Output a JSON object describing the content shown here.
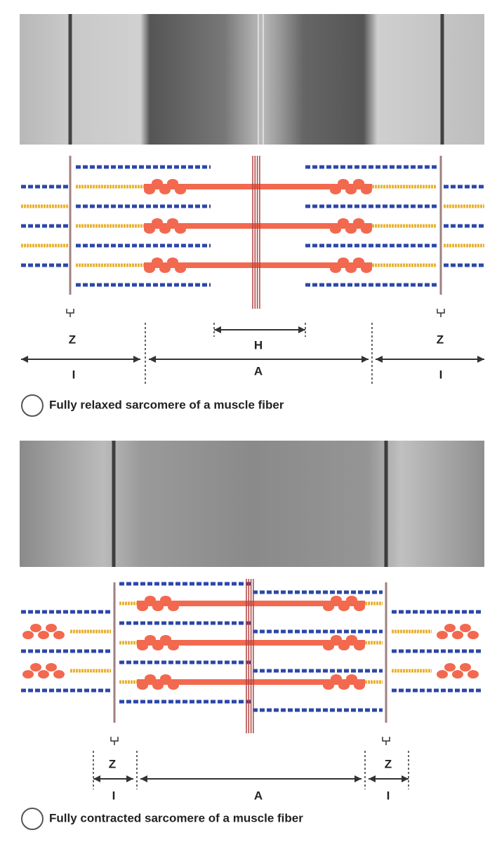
{
  "panels": [
    {
      "labels": {
        "z_left": "Z",
        "z_right": "Z",
        "h": "H",
        "i_left": "I",
        "a": "A",
        "i_right": "I"
      },
      "caption": "Fully relaxed sarcomere of a muscle fiber"
    },
    {
      "labels": {
        "z_left": "Z",
        "z_right": "Z",
        "i_left": "I",
        "a": "A",
        "i_right": "I"
      },
      "caption": "Fully contracted sarcomere of a muscle fiber"
    }
  ]
}
